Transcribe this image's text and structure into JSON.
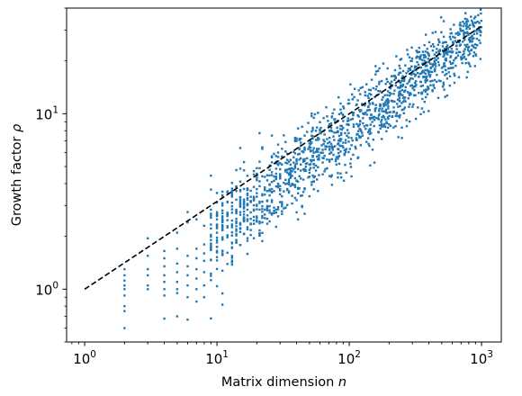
{
  "chart_data": {
    "type": "scatter",
    "xlabel": "Matrix dimension n",
    "ylabel": "Growth factor ρ",
    "xscale": "log",
    "yscale": "log",
    "xlim": [
      0.73,
      1410
    ],
    "ylim": [
      0.5,
      40
    ],
    "grid": false,
    "legend": "none",
    "x_ticks": [
      {
        "value": 1,
        "base": "10",
        "exp": "0"
      },
      {
        "value": 10,
        "base": "10",
        "exp": "1"
      },
      {
        "value": 100,
        "base": "10",
        "exp": "2"
      },
      {
        "value": 1000,
        "base": "10",
        "exp": "3"
      }
    ],
    "y_ticks": [
      {
        "value": 1,
        "base": "10",
        "exp": "0"
      },
      {
        "value": 10,
        "base": "10",
        "exp": "1"
      }
    ],
    "reference_line": {
      "style": "dashed",
      "color": "#000000",
      "x": [
        1,
        1000
      ],
      "y": [
        1,
        31.6
      ],
      "formula": "sqrt(n)"
    },
    "series": [
      {
        "color": "#1f77b4",
        "marker": "small-square",
        "trend": "rho ≈ 0.54·n^0.584 with lognormal spread; one sample set per n from 2 to 1000",
        "points": [
          [
            2,
            0.6
          ],
          [
            2,
            0.75
          ],
          [
            2,
            0.8
          ],
          [
            2,
            0.92
          ],
          [
            2,
            1.0
          ],
          [
            2,
            1.05
          ],
          [
            2,
            1.12
          ],
          [
            2,
            1.2
          ],
          [
            2,
            1.3
          ],
          [
            3,
            1.0
          ],
          [
            3,
            1.05
          ],
          [
            3,
            1.2
          ],
          [
            3,
            1.3
          ],
          [
            3,
            1.55
          ],
          [
            3,
            1.95
          ],
          [
            4,
            0.68
          ],
          [
            4,
            0.92
          ],
          [
            4,
            1.0
          ],
          [
            4,
            1.1
          ],
          [
            4,
            1.2
          ],
          [
            4,
            1.35
          ],
          [
            4,
            1.5
          ],
          [
            4,
            1.65
          ],
          [
            5,
            0.7
          ],
          [
            5,
            0.95
          ],
          [
            5,
            1.0
          ],
          [
            5,
            1.1
          ],
          [
            5,
            1.25
          ],
          [
            5,
            1.4
          ],
          [
            5,
            1.7
          ],
          [
            5,
            2.1
          ],
          [
            6,
            0.67
          ],
          [
            6,
            0.9
          ],
          [
            6,
            1.05
          ],
          [
            6,
            1.2
          ],
          [
            6,
            1.35
          ],
          [
            6,
            1.55
          ],
          [
            6,
            2.4
          ],
          [
            6,
            2.75
          ],
          [
            7,
            0.85
          ],
          [
            7,
            1.0
          ],
          [
            7,
            1.15
          ],
          [
            7,
            1.3
          ],
          [
            7,
            1.5
          ],
          [
            7,
            1.7
          ],
          [
            7,
            2.5
          ],
          [
            8,
            0.9
          ],
          [
            8,
            1.05
          ],
          [
            8,
            1.25
          ],
          [
            8,
            1.45
          ],
          [
            8,
            1.6
          ],
          [
            8,
            1.8
          ],
          [
            8,
            2.3
          ]
        ]
      }
    ]
  }
}
